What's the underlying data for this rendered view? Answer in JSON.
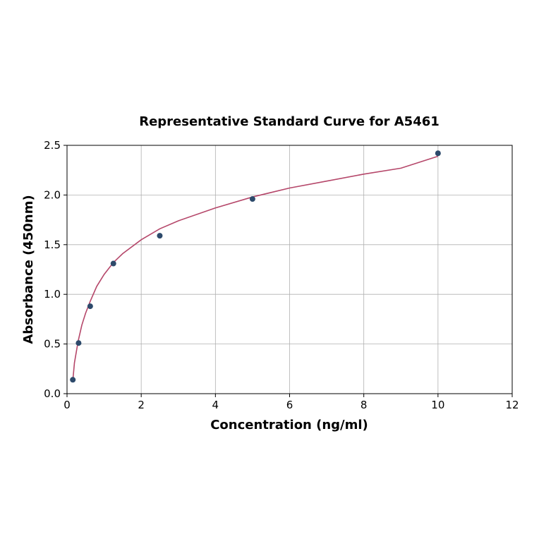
{
  "chart_data": {
    "type": "scatter",
    "title": "Representative Standard Curve for A5461",
    "xlabel": "Concentration (ng/ml)",
    "ylabel": "Absorbance (450nm)",
    "xlim": [
      0,
      12
    ],
    "ylim": [
      0,
      2.5
    ],
    "xticks": [
      "0",
      "2",
      "4",
      "6",
      "8",
      "10",
      "12"
    ],
    "yticks": [
      "0.0",
      "0.5",
      "1.0",
      "1.5",
      "2.0",
      "2.5"
    ],
    "grid": true,
    "legend": "none",
    "series": [
      {
        "x": [
          0.156,
          0.312,
          0.625,
          1.25,
          2.5,
          5,
          10
        ],
        "y": [
          0.14,
          0.51,
          0.88,
          1.31,
          1.59,
          1.96,
          2.42
        ],
        "marker_color": "#2d4a6b"
      }
    ],
    "fit_curve": {
      "type": "log",
      "color": "#b5476a",
      "x": [
        0.156,
        0.2,
        0.3,
        0.4,
        0.5,
        0.625,
        0.8,
        1,
        1.25,
        1.5,
        2,
        2.5,
        3,
        4,
        5,
        6,
        7,
        8,
        9,
        10
      ],
      "y": [
        0.13,
        0.31,
        0.53,
        0.69,
        0.81,
        0.93,
        1.08,
        1.2,
        1.32,
        1.41,
        1.55,
        1.66,
        1.74,
        1.87,
        1.98,
        2.07,
        2.14,
        2.21,
        2.27,
        2.39
      ]
    }
  }
}
